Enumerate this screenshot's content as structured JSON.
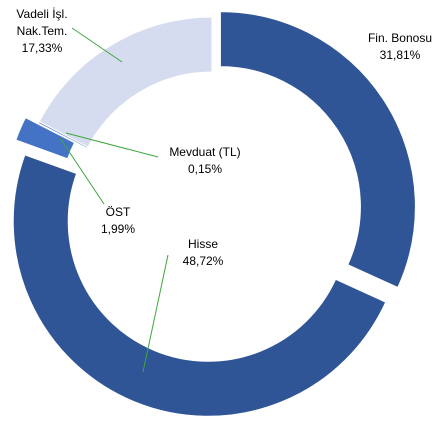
{
  "chart_data": {
    "type": "donut",
    "categories": [
      "Fin. Bonosu",
      "Hisse",
      "ÖST",
      "Mevduat (TL)",
      "Vadeli İşl. Nak.Tem."
    ],
    "values": [
      31.81,
      48.72,
      1.99,
      0.15,
      17.33
    ],
    "value_labels": [
      "31,81%",
      "48,72%",
      "1,99%",
      "0,15%",
      "17,33%"
    ],
    "colors": [
      "#2f5597",
      "#2f5597",
      "#4472c4",
      "#4472c4",
      "#d6dcef"
    ]
  }
}
